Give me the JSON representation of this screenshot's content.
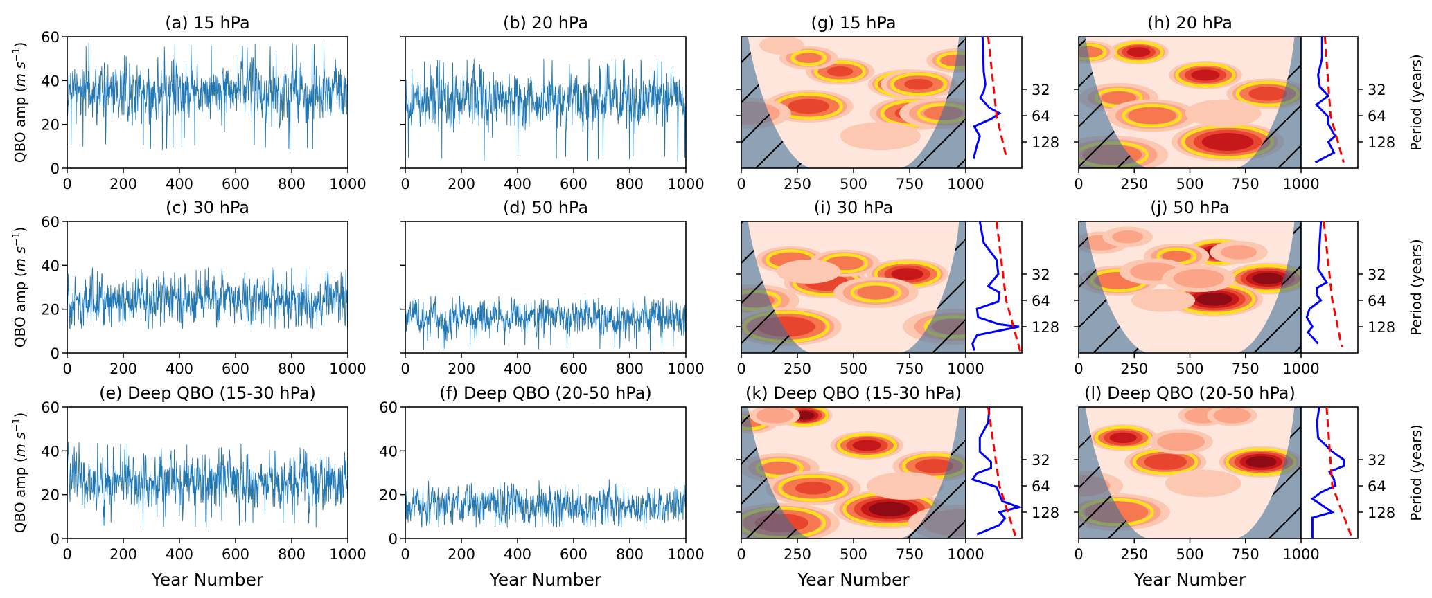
{
  "figure": {
    "shared_xlabel": "Year Number",
    "ts_ylabel": "QBO amp (m s⁻¹)",
    "period_ylabel": "Period (years)"
  },
  "chart_data": [
    {
      "id": "a",
      "type": "line",
      "title": "(a) 15 hPa",
      "xlabel": "",
      "ylabel": "QBO amp (m s^-1)",
      "xlim": [
        0,
        1000
      ],
      "ylim": [
        0,
        60
      ],
      "xticks": [
        0,
        200,
        400,
        600,
        800,
        1000
      ],
      "yticks": [
        0,
        20,
        40,
        60
      ],
      "show_yticklabels": true,
      "show_xlabel": false,
      "color": "#1f77b4",
      "series": [
        {
          "name": "15 hPa amplitude",
          "mean": 35,
          "spread": 6,
          "min": 8,
          "max": 58,
          "n": 1000
        }
      ]
    },
    {
      "id": "b",
      "type": "line",
      "title": "(b) 20 hPa",
      "xlabel": "",
      "ylabel": "",
      "xlim": [
        0,
        1000
      ],
      "ylim": [
        0,
        60
      ],
      "xticks": [
        0,
        200,
        400,
        600,
        800,
        1000
      ],
      "yticks": [
        0,
        20,
        40,
        60
      ],
      "show_yticklabels": false,
      "show_xlabel": false,
      "color": "#1f77b4",
      "series": [
        {
          "name": "20 hPa amplitude",
          "mean": 31,
          "spread": 6,
          "min": 3,
          "max": 50,
          "n": 1000
        }
      ]
    },
    {
      "id": "c",
      "type": "line",
      "title": "(c) 30 hPa",
      "xlabel": "",
      "ylabel": "QBO amp (m s^-1)",
      "xlim": [
        0,
        1000
      ],
      "ylim": [
        0,
        60
      ],
      "xticks": [
        0,
        200,
        400,
        600,
        800,
        1000
      ],
      "yticks": [
        0,
        20,
        40,
        60
      ],
      "show_yticklabels": true,
      "show_xlabel": false,
      "color": "#1f77b4",
      "series": [
        {
          "name": "30 hPa amplitude",
          "mean": 24,
          "spread": 5,
          "min": 11,
          "max": 39,
          "n": 1000
        }
      ]
    },
    {
      "id": "d",
      "type": "line",
      "title": "(d) 50 hPa",
      "xlabel": "",
      "ylabel": "",
      "xlim": [
        0,
        1000
      ],
      "ylim": [
        0,
        60
      ],
      "xticks": [
        0,
        200,
        400,
        600,
        800,
        1000
      ],
      "yticks": [
        0,
        20,
        40,
        60
      ],
      "show_yticklabels": false,
      "show_xlabel": false,
      "color": "#1f77b4",
      "series": [
        {
          "name": "50 hPa amplitude",
          "mean": 16,
          "spread": 4,
          "min": 1,
          "max": 26,
          "n": 1000
        }
      ]
    },
    {
      "id": "e",
      "type": "line",
      "title": "(e) Deep QBO (15-30 hPa)",
      "xlabel": "Year Number",
      "ylabel": "QBO amp (m s^-1)",
      "xlim": [
        0,
        1000
      ],
      "ylim": [
        0,
        60
      ],
      "xticks": [
        0,
        200,
        400,
        600,
        800,
        1000
      ],
      "yticks": [
        0,
        20,
        40,
        60
      ],
      "show_yticklabels": true,
      "show_xlabel": true,
      "color": "#1f77b4",
      "series": [
        {
          "name": "Deep QBO 15-30 hPa amplitude",
          "mean": 26,
          "spread": 6,
          "min": 5,
          "max": 44,
          "n": 1000
        }
      ]
    },
    {
      "id": "f",
      "type": "line",
      "title": "(f) Deep QBO (20-50 hPa)",
      "xlabel": "Year Number",
      "ylabel": "",
      "xlim": [
        0,
        1000
      ],
      "ylim": [
        0,
        60
      ],
      "xticks": [
        0,
        200,
        400,
        600,
        800,
        1000
      ],
      "yticks": [
        0,
        20,
        40,
        60
      ],
      "show_yticklabels": true,
      "show_xlabel": true,
      "color": "#1f77b4",
      "series": [
        {
          "name": "Deep QBO 20-50 hPa amplitude",
          "mean": 15,
          "spread": 4,
          "min": 5,
          "max": 27,
          "n": 1000
        }
      ]
    },
    {
      "id": "g",
      "type": "heatmap",
      "title": "(g) 15 hPa",
      "xlabel": "",
      "xlim": [
        0,
        1000
      ],
      "xticks": [
        0,
        250,
        500,
        750,
        1000
      ],
      "yticks": [
        32,
        64,
        128
      ],
      "show_period_label": false,
      "show_period_ticklabels": false,
      "show_xlabel": false,
      "period_range": [
        8,
        256
      ],
      "blobs": [
        [
          300,
          50,
          0.75
        ],
        [
          440,
          20,
          0.7
        ],
        [
          300,
          14,
          0.55
        ],
        [
          740,
          28,
          0.9
        ],
        [
          790,
          28,
          0.7
        ],
        [
          780,
          60,
          0.75
        ],
        [
          900,
          60,
          0.55
        ],
        [
          960,
          15,
          0.6
        ],
        [
          30,
          60,
          0.5
        ],
        [
          180,
          10,
          0.35
        ],
        [
          620,
          110,
          0.3
        ]
      ],
      "global_spectrum": [
        [
          8,
          0.3
        ],
        [
          20,
          0.32
        ],
        [
          28,
          0.35
        ],
        [
          34,
          0.32
        ],
        [
          40,
          0.26
        ],
        [
          52,
          0.42
        ],
        [
          60,
          0.6
        ],
        [
          70,
          0.45
        ],
        [
          85,
          0.15
        ],
        [
          110,
          0.25
        ],
        [
          140,
          0.2
        ],
        [
          200,
          0.14
        ]
      ],
      "significance": [
        [
          8,
          0.4
        ],
        [
          64,
          0.55
        ],
        [
          200,
          0.73
        ]
      ]
    },
    {
      "id": "h",
      "type": "heatmap",
      "title": "(h) 20 hPa",
      "xlabel": "",
      "xlim": [
        0,
        1000
      ],
      "xticks": [
        0,
        250,
        500,
        750,
        1000
      ],
      "yticks": [
        32,
        64,
        128
      ],
      "show_period_label": true,
      "show_period_ticklabels": true,
      "show_xlabel": false,
      "period_range": [
        8,
        256
      ],
      "blobs": [
        [
          270,
          12,
          0.85
        ],
        [
          40,
          12,
          0.6
        ],
        [
          570,
          22,
          0.85
        ],
        [
          850,
          36,
          0.75
        ],
        [
          180,
          40,
          0.55
        ],
        [
          330,
          64,
          0.6
        ],
        [
          670,
          128,
          0.9
        ],
        [
          150,
          180,
          0.6
        ],
        [
          650,
          60,
          0.35
        ]
      ],
      "global_spectrum": [
        [
          8,
          0.37
        ],
        [
          14,
          0.37
        ],
        [
          22,
          0.3
        ],
        [
          30,
          0.33
        ],
        [
          38,
          0.48
        ],
        [
          48,
          0.27
        ],
        [
          66,
          0.48
        ],
        [
          80,
          0.48
        ],
        [
          110,
          0.6
        ],
        [
          128,
          0.48
        ],
        [
          170,
          0.58
        ],
        [
          220,
          0.25
        ]
      ],
      "significance": [
        [
          8,
          0.42
        ],
        [
          64,
          0.52
        ],
        [
          220,
          0.75
        ]
      ]
    },
    {
      "id": "i",
      "type": "heatmap",
      "title": "(i) 30 hPa",
      "xlabel": "",
      "xlim": [
        0,
        1000
      ],
      "xticks": [
        0,
        250,
        500,
        750,
        1000
      ],
      "yticks": [
        32,
        64,
        128
      ],
      "show_period_label": false,
      "show_period_ticklabels": false,
      "show_xlabel": false,
      "period_range": [
        8,
        256
      ],
      "blobs": [
        [
          220,
          22,
          0.65
        ],
        [
          380,
          40,
          0.8
        ],
        [
          460,
          24,
          0.6
        ],
        [
          740,
          32,
          0.85
        ],
        [
          600,
          52,
          0.55
        ],
        [
          60,
          64,
          0.55
        ],
        [
          200,
          128,
          0.8
        ],
        [
          950,
          128,
          0.55
        ],
        [
          300,
          30,
          0.35
        ]
      ],
      "global_spectrum": [
        [
          8,
          0.25
        ],
        [
          14,
          0.32
        ],
        [
          22,
          0.55
        ],
        [
          32,
          0.58
        ],
        [
          44,
          0.4
        ],
        [
          52,
          0.6
        ],
        [
          66,
          0.58
        ],
        [
          80,
          0.2
        ],
        [
          100,
          0.22
        ],
        [
          120,
          0.6
        ],
        [
          128,
          0.95
        ],
        [
          160,
          0.2
        ],
        [
          200,
          0.12
        ],
        [
          240,
          0.15
        ]
      ],
      "significance": [
        [
          8,
          0.55
        ],
        [
          64,
          0.72
        ],
        [
          256,
          0.98
        ]
      ]
    },
    {
      "id": "j",
      "type": "heatmap",
      "title": "(j) 50 hPa",
      "xlabel": "",
      "xlim": [
        0,
        1000
      ],
      "xticks": [
        0,
        250,
        500,
        750,
        1000
      ],
      "yticks": [
        32,
        64,
        128
      ],
      "show_period_label": true,
      "show_period_ticklabels": true,
      "show_xlabel": false,
      "period_range": [
        8,
        256
      ],
      "blobs": [
        [
          630,
          18,
          0.95
        ],
        [
          850,
          36,
          0.95
        ],
        [
          610,
          62,
          0.95
        ],
        [
          180,
          38,
          0.65
        ],
        [
          440,
          20,
          0.55
        ],
        [
          100,
          14,
          0.45
        ],
        [
          340,
          30,
          0.45
        ],
        [
          540,
          36,
          0.45
        ],
        [
          220,
          12,
          0.4
        ],
        [
          720,
          18,
          0.4
        ],
        [
          380,
          64,
          0.25
        ]
      ],
      "global_spectrum": [
        [
          8,
          0.35
        ],
        [
          28,
          0.3
        ],
        [
          34,
          0.38
        ],
        [
          40,
          0.45
        ],
        [
          46,
          0.28
        ],
        [
          56,
          0.28
        ],
        [
          64,
          0.35
        ],
        [
          80,
          0.15
        ],
        [
          100,
          0.1
        ],
        [
          128,
          0.2
        ],
        [
          148,
          0.12
        ],
        [
          200,
          0.3
        ]
      ],
      "significance": [
        [
          8,
          0.4
        ],
        [
          64,
          0.55
        ],
        [
          220,
          0.72
        ]
      ]
    },
    {
      "id": "k",
      "type": "heatmap",
      "title": "(k) Deep QBO (15-30 hPa)",
      "xlabel": "Year Number",
      "xlim": [
        0,
        1000
      ],
      "xticks": [
        0,
        250,
        500,
        750,
        1000
      ],
      "yticks": [
        32,
        64,
        128
      ],
      "show_period_label": false,
      "show_period_ticklabels": false,
      "show_xlabel": true,
      "period_range": [
        8,
        256
      ],
      "blobs": [
        [
          280,
          10,
          0.95
        ],
        [
          560,
          22,
          0.85
        ],
        [
          860,
          38,
          0.75
        ],
        [
          170,
          40,
          0.55
        ],
        [
          320,
          68,
          0.7
        ],
        [
          660,
          118,
          0.95
        ],
        [
          180,
          170,
          0.75
        ],
        [
          40,
          12,
          0.55
        ],
        [
          150,
          10,
          0.5
        ],
        [
          730,
          64,
          0.35
        ],
        [
          980,
          170,
          0.5
        ]
      ],
      "global_spectrum": [
        [
          8,
          0.42
        ],
        [
          12,
          0.4
        ],
        [
          18,
          0.25
        ],
        [
          26,
          0.25
        ],
        [
          34,
          0.45
        ],
        [
          40,
          0.45
        ],
        [
          46,
          0.2
        ],
        [
          54,
          0.12
        ],
        [
          66,
          0.55
        ],
        [
          80,
          0.6
        ],
        [
          96,
          0.65
        ],
        [
          112,
          0.95
        ],
        [
          128,
          0.6
        ],
        [
          150,
          0.7
        ],
        [
          180,
          0.6
        ],
        [
          230,
          0.2
        ]
      ],
      "significance": [
        [
          8,
          0.4
        ],
        [
          64,
          0.6
        ],
        [
          256,
          0.9
        ]
      ]
    },
    {
      "id": "l",
      "type": "heatmap",
      "title": "(l) Deep QBO (20-50 hPa)",
      "xlabel": "Year Number",
      "xlim": [
        0,
        1000
      ],
      "xticks": [
        0,
        250,
        500,
        750,
        1000
      ],
      "yticks": [
        32,
        64,
        128
      ],
      "show_period_label": true,
      "show_period_ticklabels": true,
      "show_xlabel": true,
      "period_range": [
        8,
        256
      ],
      "blobs": [
        [
          200,
          18,
          0.85
        ],
        [
          390,
          34,
          0.8
        ],
        [
          460,
          20,
          0.5
        ],
        [
          820,
          34,
          0.95
        ],
        [
          170,
          128,
          0.65
        ],
        [
          10,
          64,
          0.45
        ],
        [
          560,
          10,
          0.5
        ],
        [
          690,
          10,
          0.5
        ],
        [
          560,
          60,
          0.35
        ]
      ],
      "global_spectrum": [
        [
          8,
          0.32
        ],
        [
          12,
          0.28
        ],
        [
          18,
          0.3
        ],
        [
          26,
          0.55
        ],
        [
          32,
          0.75
        ],
        [
          38,
          0.75
        ],
        [
          44,
          0.5
        ],
        [
          54,
          0.58
        ],
        [
          64,
          0.6
        ],
        [
          76,
          0.35
        ],
        [
          90,
          0.2
        ],
        [
          110,
          0.4
        ],
        [
          128,
          0.55
        ],
        [
          148,
          0.2
        ],
        [
          200,
          0.2
        ],
        [
          256,
          0.2
        ]
      ],
      "significance": [
        [
          8,
          0.45
        ],
        [
          64,
          0.55
        ],
        [
          256,
          0.9
        ]
      ]
    }
  ]
}
